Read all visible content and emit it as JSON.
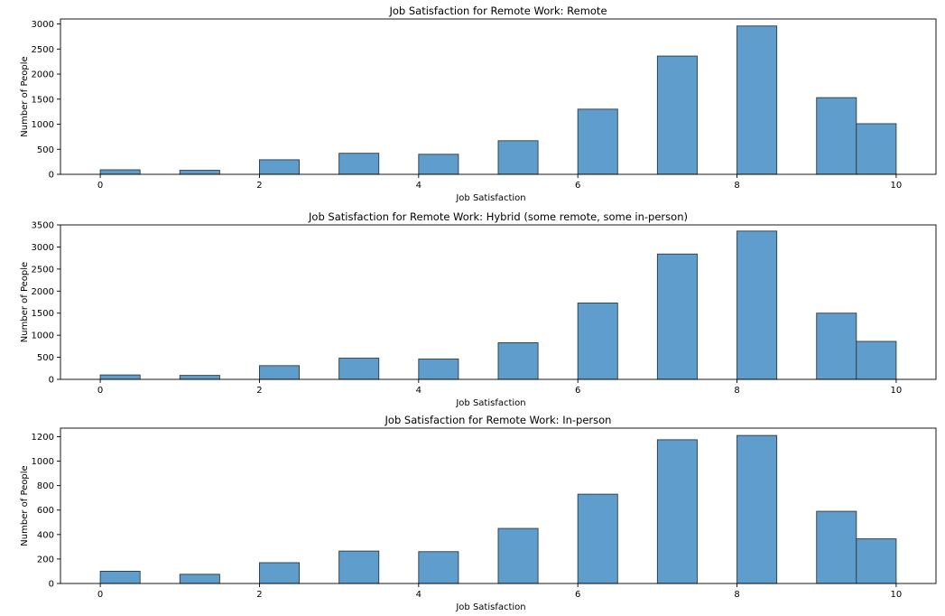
{
  "chart_data": [
    {
      "type": "bar",
      "title": "Job Satisfaction for Remote Work: Remote",
      "xlabel": "Job Satisfaction",
      "ylabel": "Number of People",
      "xlim": [
        -0.5,
        10.5
      ],
      "ylim": [
        0,
        3100
      ],
      "xticks": [
        0,
        2,
        4,
        6,
        8,
        10
      ],
      "yticks": [
        0,
        500,
        1000,
        1500,
        2000,
        2500,
        3000
      ],
      "bins": [
        {
          "x0": 0.0,
          "x1": 0.5,
          "value": 90
        },
        {
          "x0": 1.0,
          "x1": 1.5,
          "value": 80
        },
        {
          "x0": 2.0,
          "x1": 2.5,
          "value": 290
        },
        {
          "x0": 3.0,
          "x1": 3.5,
          "value": 420
        },
        {
          "x0": 4.0,
          "x1": 4.5,
          "value": 400
        },
        {
          "x0": 5.0,
          "x1": 5.5,
          "value": 670
        },
        {
          "x0": 6.0,
          "x1": 6.5,
          "value": 1300
        },
        {
          "x0": 7.0,
          "x1": 7.5,
          "value": 2360
        },
        {
          "x0": 8.0,
          "x1": 8.5,
          "value": 2960
        },
        {
          "x0": 9.0,
          "x1": 9.5,
          "value": 1530
        },
        {
          "x0": 9.5,
          "x1": 10.0,
          "value": 1010
        }
      ]
    },
    {
      "type": "bar",
      "title": "Job Satisfaction for Remote Work: Hybrid (some remote, some in-person)",
      "xlabel": "Job Satisfaction",
      "ylabel": "Number of People",
      "xlim": [
        -0.5,
        10.5
      ],
      "ylim": [
        0,
        3500
      ],
      "xticks": [
        0,
        2,
        4,
        6,
        8,
        10
      ],
      "yticks": [
        0,
        500,
        1000,
        1500,
        2000,
        2500,
        3000,
        3500
      ],
      "bins": [
        {
          "x0": 0.0,
          "x1": 0.5,
          "value": 100
        },
        {
          "x0": 1.0,
          "x1": 1.5,
          "value": 90
        },
        {
          "x0": 2.0,
          "x1": 2.5,
          "value": 310
        },
        {
          "x0": 3.0,
          "x1": 3.5,
          "value": 480
        },
        {
          "x0": 4.0,
          "x1": 4.5,
          "value": 460
        },
        {
          "x0": 5.0,
          "x1": 5.5,
          "value": 830
        },
        {
          "x0": 6.0,
          "x1": 6.5,
          "value": 1730
        },
        {
          "x0": 7.0,
          "x1": 7.5,
          "value": 2840
        },
        {
          "x0": 8.0,
          "x1": 8.5,
          "value": 3360
        },
        {
          "x0": 9.0,
          "x1": 9.5,
          "value": 1500
        },
        {
          "x0": 9.5,
          "x1": 10.0,
          "value": 860
        }
      ]
    },
    {
      "type": "bar",
      "title": "Job Satisfaction for Remote Work: In-person",
      "xlabel": "Job Satisfaction",
      "ylabel": "Number of People",
      "xlim": [
        -0.5,
        10.5
      ],
      "ylim": [
        0,
        1270
      ],
      "xticks": [
        0,
        2,
        4,
        6,
        8,
        10
      ],
      "yticks": [
        0,
        200,
        400,
        600,
        800,
        1000,
        1200
      ],
      "bins": [
        {
          "x0": 0.0,
          "x1": 0.5,
          "value": 100
        },
        {
          "x0": 1.0,
          "x1": 1.5,
          "value": 75
        },
        {
          "x0": 2.0,
          "x1": 2.5,
          "value": 170
        },
        {
          "x0": 3.0,
          "x1": 3.5,
          "value": 265
        },
        {
          "x0": 4.0,
          "x1": 4.5,
          "value": 260
        },
        {
          "x0": 5.0,
          "x1": 5.5,
          "value": 450
        },
        {
          "x0": 6.0,
          "x1": 6.5,
          "value": 730
        },
        {
          "x0": 7.0,
          "x1": 7.5,
          "value": 1175
        },
        {
          "x0": 8.0,
          "x1": 8.5,
          "value": 1210
        },
        {
          "x0": 9.0,
          "x1": 9.5,
          "value": 590
        },
        {
          "x0": 9.5,
          "x1": 10.0,
          "value": 365
        }
      ]
    }
  ],
  "colors": {
    "bar_fill": "#5f9ecc",
    "bar_edge": "#2a3a44",
    "axis": "#000000"
  }
}
